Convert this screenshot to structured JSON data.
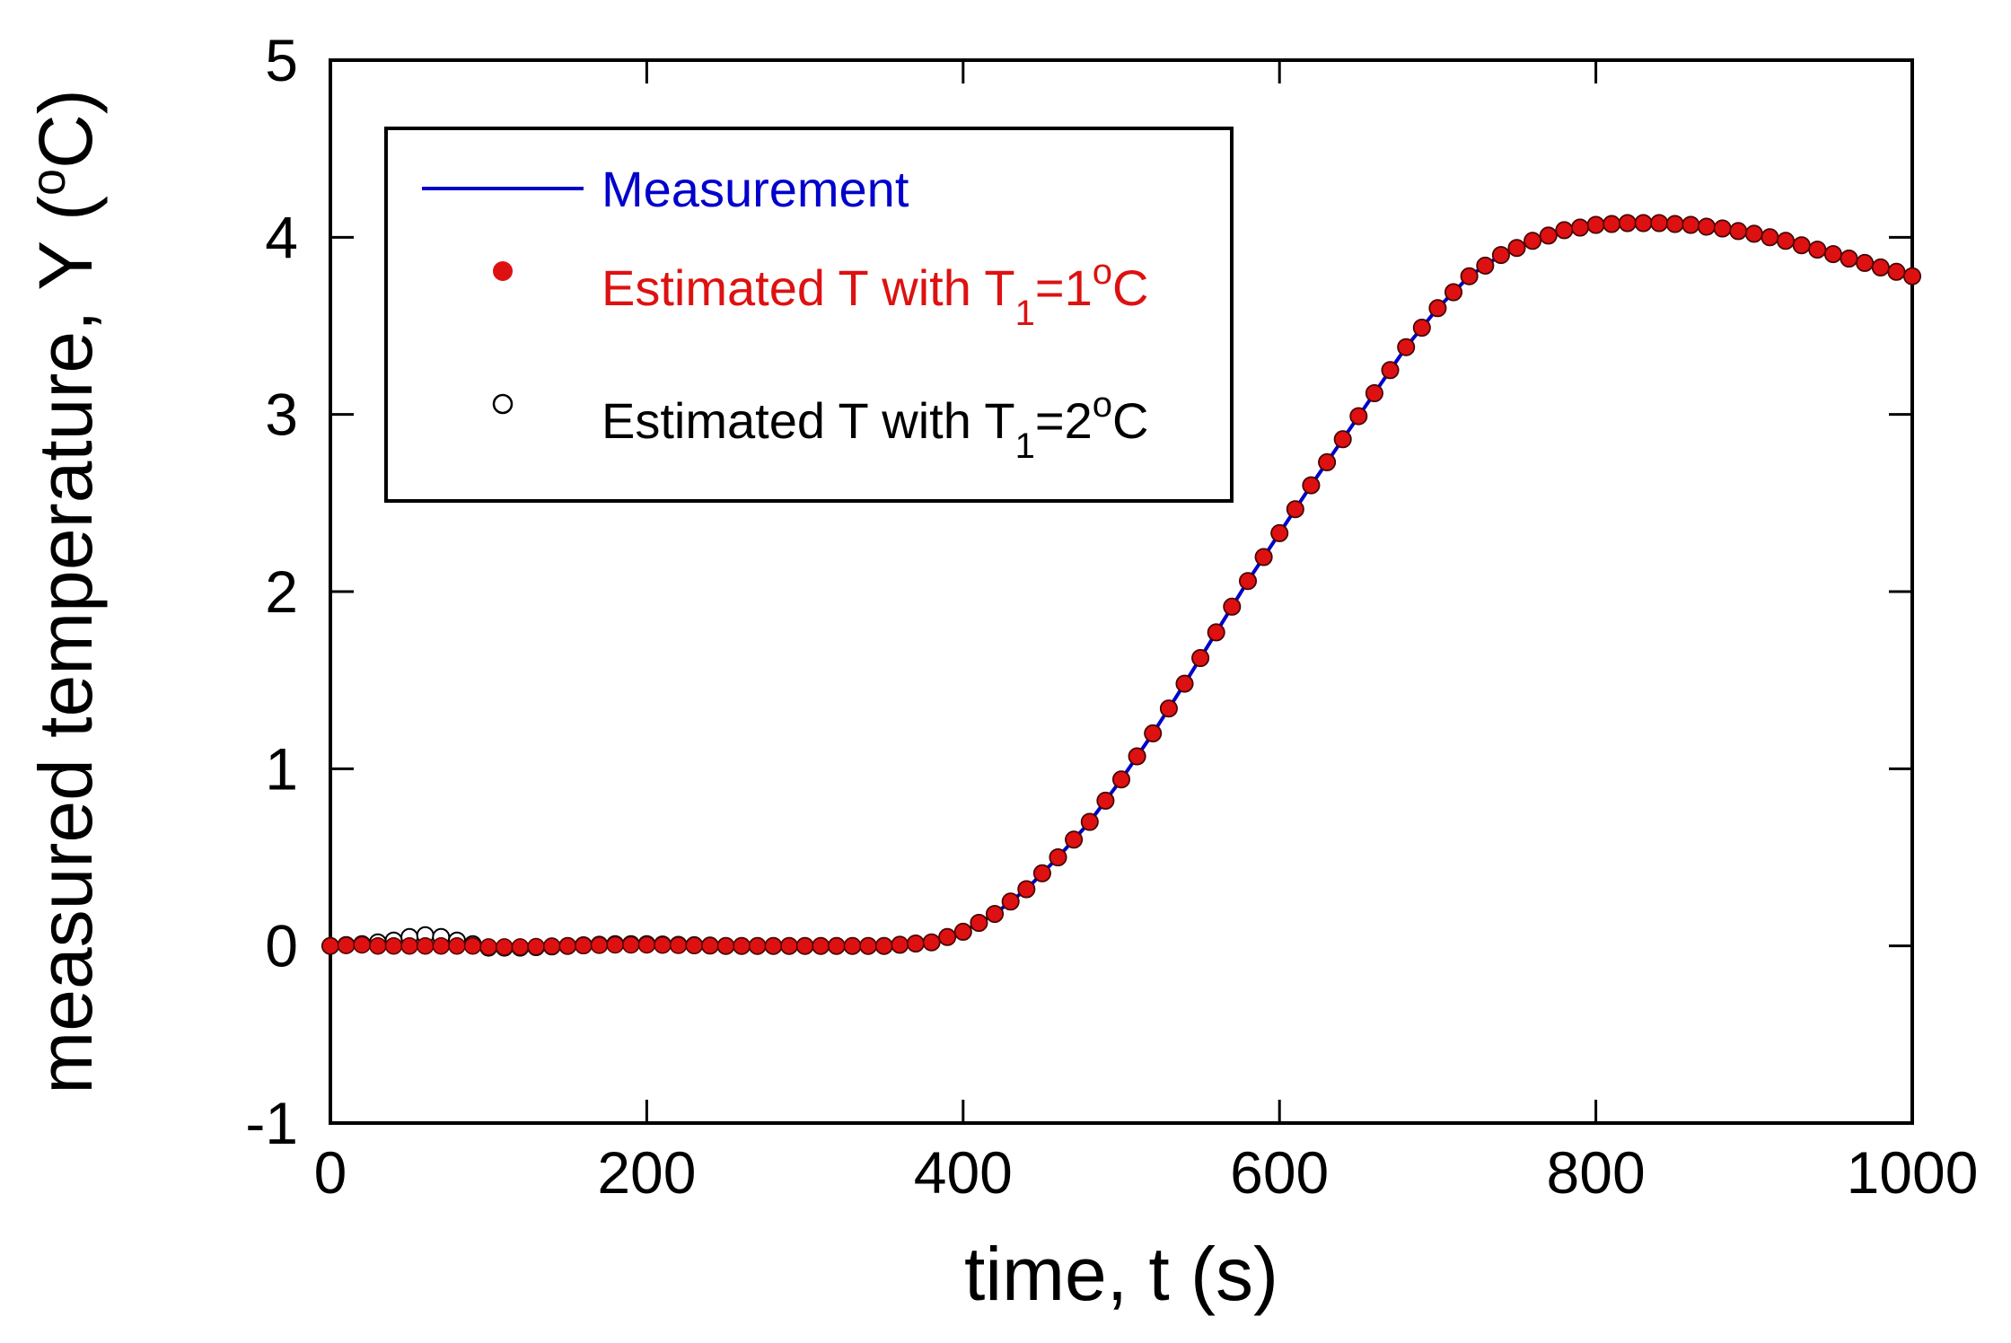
{
  "chart_data": {
    "type": "line",
    "title": "",
    "xlabel": "time, t (s)",
    "ylabel": {
      "main": "measured temperature, Y (",
      "sup": "o",
      "tail": "C)"
    },
    "xlim": [
      0,
      1000
    ],
    "ylim": [
      -1,
      5
    ],
    "xticks": [
      0,
      200,
      400,
      600,
      800,
      1000
    ],
    "yticks": [
      -1,
      0,
      1,
      2,
      3,
      4,
      5
    ],
    "xtick_labels": [
      "0",
      "200",
      "400",
      "600",
      "800",
      "1000"
    ],
    "ytick_labels": [
      "-1",
      "0",
      "1",
      "2",
      "3",
      "4",
      "5"
    ],
    "grid": false,
    "legend_position": "top-left",
    "series": [
      {
        "name": "Measurement",
        "style": "line",
        "color": "#0000cc",
        "x": [
          0,
          50,
          100,
          150,
          200,
          250,
          300,
          350,
          380,
          400,
          420,
          440,
          460,
          480,
          500,
          520,
          540,
          560,
          580,
          600,
          620,
          640,
          660,
          680,
          700,
          720,
          740,
          760,
          780,
          800,
          820,
          840,
          860,
          880,
          900,
          920,
          940,
          960,
          980,
          1000
        ],
        "y": [
          0,
          0,
          0,
          0,
          0,
          0,
          0,
          0,
          0.02,
          0.08,
          0.18,
          0.32,
          0.5,
          0.7,
          0.94,
          1.2,
          1.48,
          1.77,
          2.06,
          2.33,
          2.6,
          2.86,
          3.12,
          3.38,
          3.6,
          3.78,
          3.9,
          3.98,
          4.04,
          4.07,
          4.08,
          4.08,
          4.07,
          4.05,
          4.02,
          3.98,
          3.93,
          3.88,
          3.83,
          3.78
        ]
      },
      {
        "name": "Estimated T with T1=1oC",
        "legend": {
          "main": "Estimated T with T",
          "sub": "1",
          "mid": "=1",
          "sup": "o",
          "tail": "C"
        },
        "style": "filled-circle",
        "color": "#dd1111",
        "x": [
          0,
          50,
          100,
          150,
          200,
          250,
          300,
          350,
          380,
          400,
          420,
          440,
          460,
          480,
          500,
          520,
          540,
          560,
          580,
          600,
          620,
          640,
          660,
          680,
          700,
          720,
          740,
          760,
          780,
          800,
          820,
          840,
          860,
          880,
          900,
          920,
          940,
          960,
          980,
          1000
        ],
        "y": [
          0,
          0,
          0,
          0,
          0,
          0,
          0,
          0,
          0.02,
          0.08,
          0.18,
          0.32,
          0.5,
          0.7,
          0.94,
          1.2,
          1.48,
          1.77,
          2.06,
          2.33,
          2.6,
          2.86,
          3.12,
          3.38,
          3.6,
          3.78,
          3.9,
          3.98,
          4.04,
          4.07,
          4.08,
          4.08,
          4.07,
          4.05,
          4.02,
          3.98,
          3.93,
          3.88,
          3.83,
          3.78
        ]
      },
      {
        "name": "Estimated T with T1=2oC",
        "legend": {
          "main": "Estimated T with T",
          "sub": "1",
          "mid": "=2",
          "sup": "o",
          "tail": "C"
        },
        "style": "open-circle",
        "color": "#000000",
        "x": [
          0,
          20,
          40,
          50,
          60,
          70,
          80,
          90,
          100,
          120,
          150,
          180,
          200,
          250,
          300,
          350,
          380,
          400,
          420,
          440,
          460,
          480,
          500,
          520,
          540,
          560,
          580,
          600,
          620,
          640,
          660,
          680,
          700,
          720,
          740,
          760,
          780,
          800,
          820,
          840,
          860,
          880,
          900,
          920,
          940,
          960,
          980,
          1000
        ],
        "y": [
          0,
          0.01,
          0.03,
          0.05,
          0.06,
          0.05,
          0.03,
          0.01,
          -0.01,
          -0.01,
          0,
          0.01,
          0.01,
          0,
          0,
          0,
          0.02,
          0.08,
          0.18,
          0.32,
          0.5,
          0.7,
          0.94,
          1.2,
          1.48,
          1.77,
          2.06,
          2.33,
          2.6,
          2.86,
          3.12,
          3.38,
          3.6,
          3.78,
          3.9,
          3.98,
          4.04,
          4.07,
          4.08,
          4.08,
          4.07,
          4.05,
          4.02,
          3.98,
          3.93,
          3.88,
          3.83,
          3.78
        ]
      }
    ]
  }
}
